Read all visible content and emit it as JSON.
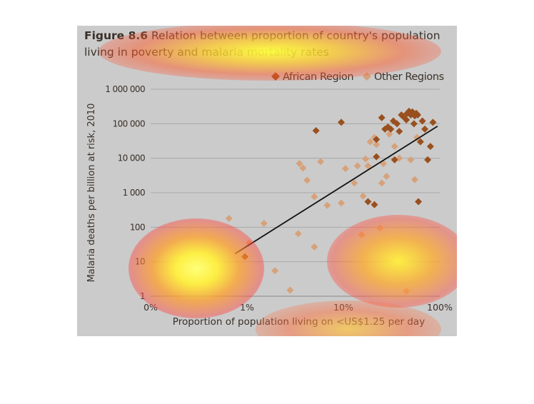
{
  "figure": {
    "label": "Figure 8.6",
    "title_rest_line1": "Relation between proportion of country's population",
    "title_line2": "living in poverty and malaria mortality rates"
  },
  "colors": {
    "background": "#cbcbcb",
    "african": "#99501e",
    "other": "#d6a27b",
    "trendline": "#111111",
    "text": "#3a3028"
  },
  "chart_data": {
    "type": "scatter",
    "title": "Figure 8.6 Relation between proportion of country's population living in poverty and malaria mortality rates",
    "xlabel": "Proportion of population living on <US$1.25 per day",
    "ylabel": "Malaria deaths per billion at risk, 2010",
    "x_scale": "log",
    "y_scale": "log",
    "xlim": [
      0.001,
      1
    ],
    "ylim": [
      1,
      1000000
    ],
    "x_ticks": [
      0.001,
      0.01,
      0.1,
      1
    ],
    "x_tick_labels": [
      "0%",
      "1%",
      "10%",
      "100%"
    ],
    "y_ticks": [
      1,
      10,
      100,
      1000,
      10000,
      100000,
      1000000
    ],
    "y_tick_labels": [
      "1",
      "10",
      "100",
      "1 000",
      "10 000",
      "100 000",
      "1 000 000"
    ],
    "grid": true,
    "legend_position": "top-right",
    "trendline": {
      "x": [
        0.0075,
        0.95
      ],
      "y": [
        17,
        85000
      ]
    },
    "series": [
      {
        "name": "African Region",
        "color": "#99501e",
        "points": [
          [
            0.0095,
            14
          ],
          [
            0.052,
            63000
          ],
          [
            0.095,
            110000
          ],
          [
            0.18,
            550
          ],
          [
            0.21,
            450
          ],
          [
            0.22,
            11000
          ],
          [
            0.22,
            35000
          ],
          [
            0.25,
            150000
          ],
          [
            0.27,
            70000
          ],
          [
            0.29,
            80000
          ],
          [
            0.31,
            70000
          ],
          [
            0.33,
            120000
          ],
          [
            0.34,
            9000
          ],
          [
            0.36,
            100000
          ],
          [
            0.38,
            60000
          ],
          [
            0.4,
            180000
          ],
          [
            0.42,
            160000
          ],
          [
            0.45,
            130000
          ],
          [
            0.46,
            200000
          ],
          [
            0.48,
            230000
          ],
          [
            0.5,
            180000
          ],
          [
            0.52,
            220000
          ],
          [
            0.54,
            100000
          ],
          [
            0.55,
            170000
          ],
          [
            0.57,
            200000
          ],
          [
            0.59,
            180000
          ],
          [
            0.6,
            550
          ],
          [
            0.63,
            30000
          ],
          [
            0.66,
            120000
          ],
          [
            0.7,
            70000
          ],
          [
            0.75,
            9000
          ],
          [
            0.8,
            22000
          ],
          [
            0.85,
            110000
          ]
        ]
      },
      {
        "name": "Other Regions",
        "color": "#d6a27b",
        "points": [
          [
            0.0065,
            180
          ],
          [
            0.0105,
            35
          ],
          [
            0.015,
            130
          ],
          [
            0.0195,
            5.5
          ],
          [
            0.028,
            1.5
          ],
          [
            0.034,
            65
          ],
          [
            0.035,
            7000
          ],
          [
            0.038,
            5200
          ],
          [
            0.042,
            2300
          ],
          [
            0.05,
            27
          ],
          [
            0.05,
            770
          ],
          [
            0.058,
            8000
          ],
          [
            0.068,
            430
          ],
          [
            0.095,
            500
          ],
          [
            0.105,
            5000
          ],
          [
            0.13,
            1900
          ],
          [
            0.14,
            6000
          ],
          [
            0.155,
            60
          ],
          [
            0.16,
            800
          ],
          [
            0.17,
            9500
          ],
          [
            0.18,
            6000
          ],
          [
            0.19,
            30000
          ],
          [
            0.21,
            40000
          ],
          [
            0.22,
            25000
          ],
          [
            0.24,
            95
          ],
          [
            0.25,
            1900
          ],
          [
            0.26,
            7000
          ],
          [
            0.28,
            3000
          ],
          [
            0.3,
            50000
          ],
          [
            0.34,
            22000
          ],
          [
            0.38,
            10000
          ],
          [
            0.45,
            1.4
          ],
          [
            0.5,
            9000
          ],
          [
            0.55,
            2400
          ],
          [
            0.58,
            40000
          ]
        ]
      }
    ]
  }
}
